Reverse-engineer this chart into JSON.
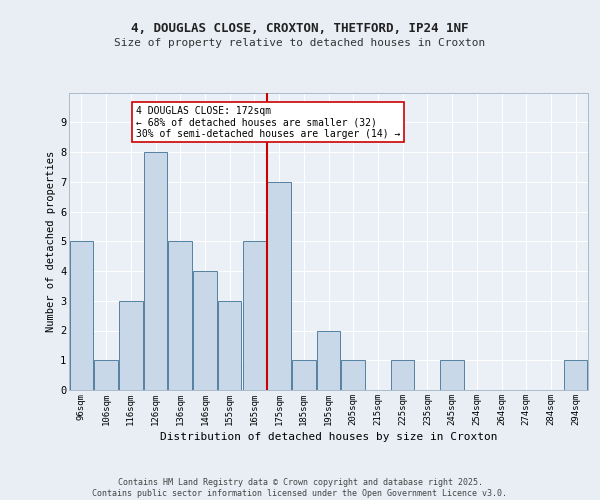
{
  "title1": "4, DOUGLAS CLOSE, CROXTON, THETFORD, IP24 1NF",
  "title2": "Size of property relative to detached houses in Croxton",
  "xlabel": "Distribution of detached houses by size in Croxton",
  "ylabel": "Number of detached properties",
  "bins": [
    "96sqm",
    "106sqm",
    "116sqm",
    "126sqm",
    "136sqm",
    "146sqm",
    "155sqm",
    "165sqm",
    "175sqm",
    "185sqm",
    "195sqm",
    "205sqm",
    "215sqm",
    "225sqm",
    "235sqm",
    "245sqm",
    "254sqm",
    "264sqm",
    "274sqm",
    "284sqm",
    "294sqm"
  ],
  "values": [
    5,
    1,
    3,
    8,
    5,
    4,
    3,
    5,
    7,
    1,
    2,
    1,
    0,
    1,
    0,
    1,
    0,
    0,
    0,
    0,
    1
  ],
  "bar_color": "#c8d8e8",
  "bar_edge_color": "#5580a0",
  "vline_color": "#cc0000",
  "annotation_title": "4 DOUGLAS CLOSE: 172sqm",
  "annotation_line1": "← 68% of detached houses are smaller (32)",
  "annotation_line2": "30% of semi-detached houses are larger (14) →",
  "annotation_box_color": "#ffffff",
  "annotation_box_edge": "#cc0000",
  "footer1": "Contains HM Land Registry data © Crown copyright and database right 2025.",
  "footer2": "Contains public sector information licensed under the Open Government Licence v3.0.",
  "bg_color": "#e8eef4",
  "plot_bg_color": "#eaf0f6",
  "ylim": [
    0,
    10
  ],
  "yticks": [
    0,
    1,
    2,
    3,
    4,
    5,
    6,
    7,
    8,
    9,
    10
  ]
}
